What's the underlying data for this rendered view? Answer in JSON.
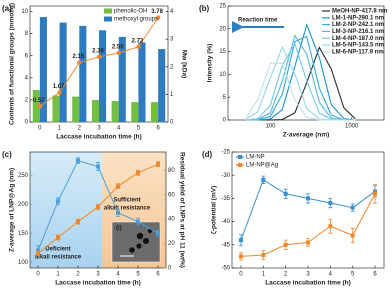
{
  "chart_data": [
    {
      "panel_label": "(a)",
      "type": "bar",
      "categories": [
        "0",
        "1",
        "2",
        "3",
        "4",
        "5",
        "6"
      ],
      "series": [
        {
          "name": "phenolic-OH",
          "type": "bar",
          "color": "#72bf44",
          "values": [
            2.9,
            2.4,
            2.3,
            2.0,
            1.9,
            1.8,
            1.8
          ]
        },
        {
          "name": "methoxyl groups",
          "type": "bar",
          "color": "#2f7bbf",
          "values": [
            9.5,
            9.0,
            8.7,
            8.3,
            7.7,
            7.2,
            6.6
          ]
        },
        {
          "type": "line",
          "axis": "y2",
          "color": "#f0882a",
          "marker": "circle",
          "values": [
            0.57,
            1.07,
            2.15,
            2.36,
            2.5,
            2.72,
            3.78
          ],
          "value_labels": [
            "0.57",
            "1.07",
            "2.15",
            "2.36",
            "2.50",
            "2.72",
            "3.78"
          ]
        }
      ],
      "ylim": [
        0,
        10.5
      ],
      "yticks": [
        0,
        2,
        4,
        6,
        8,
        10
      ],
      "y2lim": [
        0,
        4.2
      ],
      "y2ticks": [
        0,
        1,
        2,
        3,
        4
      ],
      "xlabel": "Laccase incubation time (h)",
      "ylabel": "Contents of functional groups (mmol/g)",
      "y2label": "Mw (kDa)",
      "legend": "upper right"
    },
    {
      "panel_label": "(b)",
      "type": "line",
      "xlog": true,
      "x": [
        50,
        70,
        100,
        140,
        200,
        280,
        400,
        560,
        800,
        1100
      ],
      "series": [
        {
          "name": "MeOH-NP-417.8 nm",
          "color": "#2b2b2b",
          "values": [
            0,
            0,
            0,
            0.1,
            1.6,
            8.2,
            15.9,
            11.2,
            2.7,
            0.3
          ]
        },
        {
          "name": "LM-1-NP-290.1 nm",
          "color": "#1596cf",
          "values": [
            0,
            0,
            0.2,
            2.3,
            11.8,
            20.9,
            13.7,
            3.4,
            0.3,
            0
          ]
        },
        {
          "name": "LM-2-NP-242.1 nm",
          "color": "#33a7da",
          "values": [
            0,
            0,
            0.8,
            5.7,
            17.2,
            18.3,
            7.0,
            1.1,
            0,
            0
          ]
        },
        {
          "name": "LM-3-NP-216.1 nm",
          "color": "#55b7e2",
          "values": [
            0,
            0.1,
            1.6,
            8.6,
            18.5,
            14.4,
            3.9,
            0.4,
            0,
            0
          ]
        },
        {
          "name": "LM-4-NP-187.0 nm",
          "color": "#76c6e9",
          "values": [
            0,
            0.3,
            3.3,
            12.0,
            16.7,
            8.6,
            1.5,
            0.1,
            0,
            0
          ]
        },
        {
          "name": "LM-5-NP-143.5 nm",
          "color": "#97d3ef",
          "values": [
            0.2,
            1.8,
            9.3,
            16.0,
            10.1,
            2.5,
            0.2,
            0,
            0,
            0
          ]
        },
        {
          "name": "LM-6-NP-117.9 nm",
          "color": "#b6e1f4",
          "values": [
            0.6,
            4.5,
            12.5,
            12.4,
            4.3,
            0.6,
            0,
            0,
            0,
            0
          ]
        }
      ],
      "xlim": [
        30,
        2500
      ],
      "xticks": [
        100,
        1000
      ],
      "ylim": [
        0,
        25
      ],
      "yticks": [
        0,
        5,
        10,
        15,
        20,
        25
      ],
      "xlabel": "Z-average (nm)",
      "ylabel": "Intensity (%)",
      "legend": "upper right",
      "annotations": [
        "Reaction time"
      ]
    },
    {
      "panel_label": "(c)",
      "type": "line",
      "axis_colors": true,
      "x": [
        0,
        1,
        2,
        3,
        4,
        5,
        6
      ],
      "series": [
        {
          "color": "#4b9ed9",
          "marker": "square",
          "values": [
            120,
            205,
            275,
            265,
            185,
            170,
            150
          ],
          "errors": [
            8,
            6,
            5,
            7,
            6,
            6,
            5
          ]
        },
        {
          "axis": "y2",
          "color": "#f0882a",
          "marker": "square",
          "values": [
            12,
            25,
            38,
            50,
            67,
            78,
            85
          ],
          "errors": [
            2,
            2,
            2,
            2,
            2,
            2,
            2
          ]
        }
      ],
      "xlim": [
        -0.4,
        6.4
      ],
      "xticks": [
        0,
        1,
        2,
        3,
        4,
        5,
        6
      ],
      "ylim": [
        90,
        290
      ],
      "yticks": [
        100,
        150,
        200,
        250
      ],
      "y2lim": [
        0,
        95
      ],
      "y2ticks": [
        0,
        20,
        40,
        60,
        80
      ],
      "xlabel": "Laccase incubation time (h)",
      "ylabel": "Z-average of LNP@Ag (nm)",
      "y2label": "Residual yield of LNPs at pH 11 (wt%)",
      "annotations": [
        "Deficient",
        "alkali resistance",
        "Sufficient",
        "alkali resistance",
        "(i)"
      ]
    },
    {
      "panel_label": "(d)",
      "type": "line",
      "x": [
        0,
        1,
        2,
        3,
        4,
        5,
        6
      ],
      "series": [
        {
          "name": "LM-NP",
          "color": "#3a8fd0",
          "marker": "square",
          "values": [
            -44,
            -31,
            -34,
            -35,
            -36,
            -37,
            -33.5
          ],
          "errors": [
            1.2,
            0.8,
            1,
            1,
            1,
            0.8,
            1.2
          ]
        },
        {
          "name": "LM-NP@Ag",
          "color": "#f0882a",
          "marker": "square",
          "values": [
            -47.5,
            -47.2,
            -45,
            -44.5,
            -41,
            -43,
            -34
          ],
          "errors": [
            0.8,
            1,
            1,
            0.8,
            1.5,
            1.5,
            2
          ]
        }
      ],
      "xlim": [
        -0.4,
        6.4
      ],
      "xticks": [
        0,
        1,
        2,
        3,
        4,
        5,
        6
      ],
      "ylim": [
        -50,
        -25
      ],
      "yticks": [
        -50,
        -45,
        -40,
        -35,
        -30,
        -25
      ],
      "xlabel": "Laccase incubation time (h)",
      "ylabel": "ζ-potential (mV)",
      "legend": "upper left"
    }
  ]
}
